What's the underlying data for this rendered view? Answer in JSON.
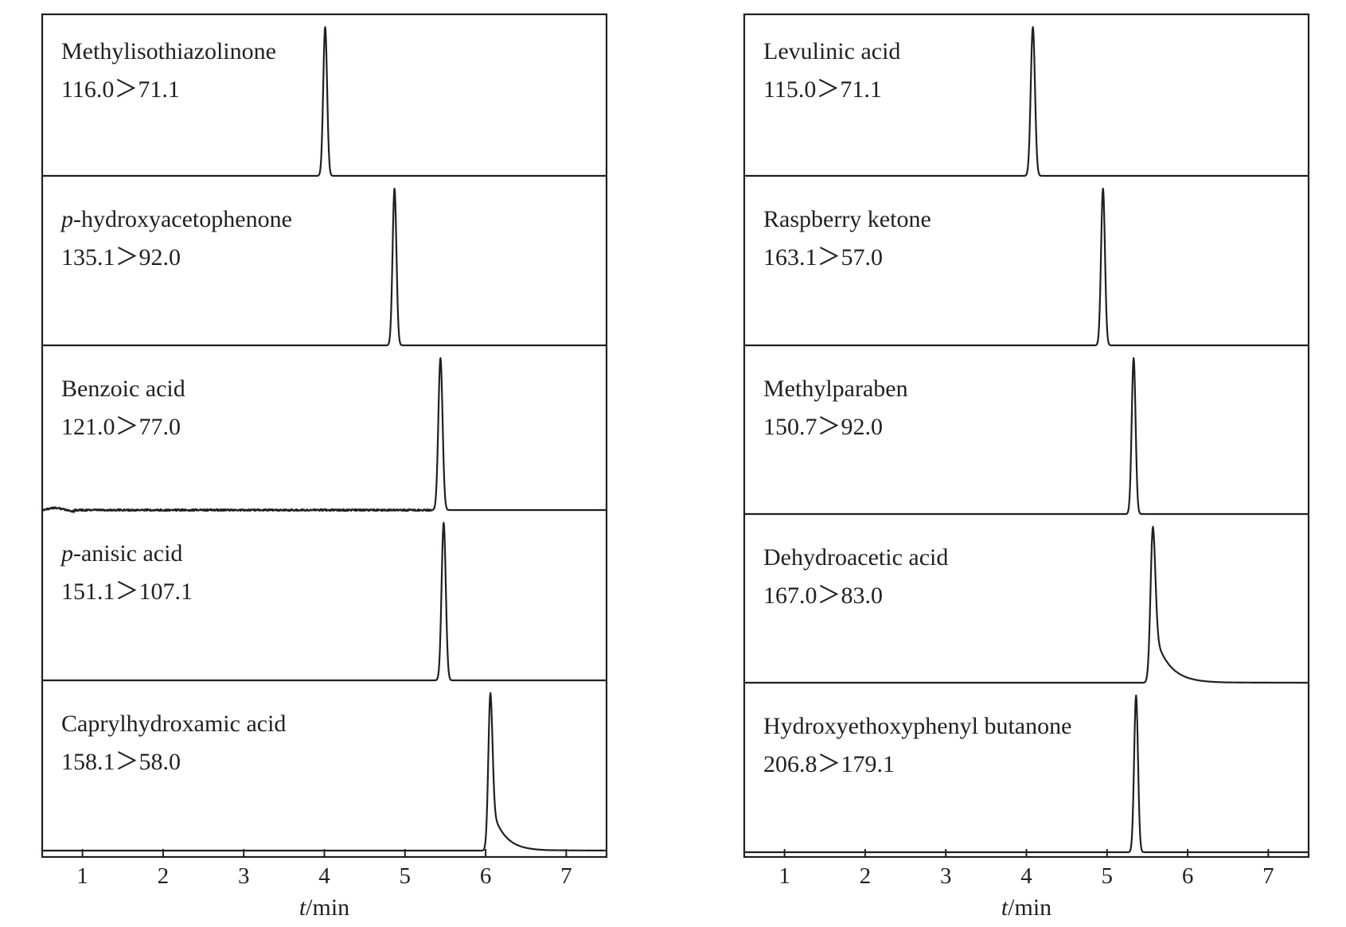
{
  "chart_data": [
    {
      "type": "line",
      "xlabel_italic": "t",
      "xlabel_rest": "/min",
      "x_ticks": [
        1,
        2,
        3,
        4,
        5,
        6,
        7
      ],
      "xlim": [
        0.5,
        7.5
      ],
      "grid": false,
      "traces": [
        {
          "name": "Methylisothiazolinone",
          "transition": "116.0>71.1",
          "peak_time": 4.01,
          "peak_width": 0.024,
          "tailing": 0.0,
          "noise": 0.0
        },
        {
          "name_prefix_italic": "p",
          "name": "-hydroxyacetophenone",
          "transition": "135.1>92.0",
          "peak_time": 4.87,
          "peak_width": 0.024,
          "tailing": 0.0,
          "noise": 0.0
        },
        {
          "name": "Benzoic acid",
          "transition": "121.0>77.0",
          "peak_time": 5.44,
          "peak_width": 0.026,
          "tailing": 0.0,
          "noise": 1.0
        },
        {
          "name_prefix_italic": "p",
          "name": "-anisic acid",
          "transition": "151.1>107.1",
          "peak_time": 5.48,
          "peak_width": 0.026,
          "tailing": 0.0,
          "noise": 0.0
        },
        {
          "name": "Caprylhydroxamic acid",
          "transition": "158.1>58.0",
          "peak_time": 6.06,
          "peak_width": 0.026,
          "tailing": 0.3,
          "noise": 0.0
        }
      ]
    },
    {
      "type": "line",
      "xlabel_italic": "t",
      "xlabel_rest": "/min",
      "x_ticks": [
        1,
        2,
        3,
        4,
        5,
        6,
        7
      ],
      "xlim": [
        0.5,
        7.5
      ],
      "grid": false,
      "traces": [
        {
          "name": "Levulinic acid",
          "transition": "115.0>71.1",
          "peak_time": 4.08,
          "peak_width": 0.026,
          "tailing": 0.0,
          "noise": 0.0
        },
        {
          "name": "Raspberry ketone",
          "transition": "163.1>57.0",
          "peak_time": 4.95,
          "peak_width": 0.024,
          "tailing": 0.0,
          "noise": 0.0
        },
        {
          "name": "Methylparaben",
          "transition": "150.7>92.0",
          "peak_time": 5.33,
          "peak_width": 0.024,
          "tailing": 0.0,
          "noise": 0.0
        },
        {
          "name": "Dehydroacetic acid",
          "transition": "167.0>83.0",
          "peak_time": 5.57,
          "peak_width": 0.03,
          "tailing": 0.35,
          "noise": 0.0
        },
        {
          "name": "Hydroxyethoxyphenyl butanone",
          "transition": "206.8>179.1",
          "peak_time": 5.36,
          "peak_width": 0.024,
          "tailing": 0.0,
          "noise": 0.0
        }
      ]
    }
  ],
  "colors": {
    "line": "#231f20",
    "background": "#ffffff"
  }
}
